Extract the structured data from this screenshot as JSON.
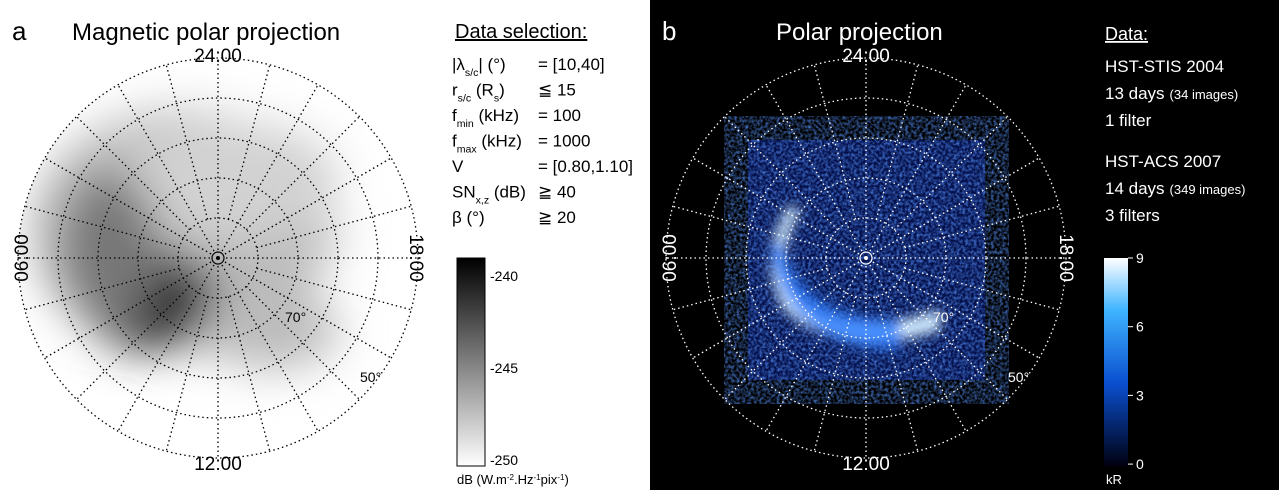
{
  "panel_a": {
    "label": "a",
    "title": "Magnetic polar projection",
    "axes": {
      "top": "24:00",
      "left": "06:00",
      "right": "18:00",
      "bottom": "12:00"
    },
    "latitudes": [
      "70°",
      "50°"
    ],
    "selection": {
      "title": "Data selection:",
      "rows": [
        {
          "label": [
            "|λ",
            "s/c",
            "| (°)"
          ],
          "value": "= [10,40]"
        },
        {
          "label": [
            "r",
            "s/c",
            " (R",
            "s",
            ")"
          ],
          "value": "≦ 15"
        },
        {
          "label": [
            "f",
            "min",
            " (kHz)"
          ],
          "value": "= 100"
        },
        {
          "label": [
            "f",
            "max",
            " (kHz)"
          ],
          "value": "= 1000"
        },
        {
          "label": [
            "V"
          ],
          "value": "= [0.80,1.10]"
        },
        {
          "label": [
            "SN",
            "x,z",
            " (dB)"
          ],
          "value": "≧ 40"
        },
        {
          "label": [
            "β (°)"
          ],
          "value": "≧ 20"
        }
      ]
    },
    "colorbar": {
      "ticks": [
        "-240",
        "-245",
        "-250"
      ],
      "unit": [
        "dB (W.m",
        "-2",
        ".Hz",
        "-1",
        "pix",
        "-1",
        ")"
      ]
    }
  },
  "panel_b": {
    "label": "b",
    "title": "Polar projection",
    "axes": {
      "top": "24:00",
      "left": "06:00",
      "right": "18:00",
      "bottom": "12:00"
    },
    "latitudes": [
      "70°",
      "50°"
    ],
    "data": {
      "title": "Data:",
      "lines": [
        {
          "text": "HST-STIS 2004"
        },
        {
          "text": "13 days",
          "note": "(34 images)"
        },
        {
          "text": "1 filter"
        },
        {
          "text": "HST-ACS 2007"
        },
        {
          "text": "14 days",
          "note": "(349 images)"
        },
        {
          "text": "3 filters"
        }
      ]
    },
    "colorbar": {
      "ticks": [
        "9",
        "6",
        "3",
        "0"
      ],
      "unit": "kR"
    }
  }
}
